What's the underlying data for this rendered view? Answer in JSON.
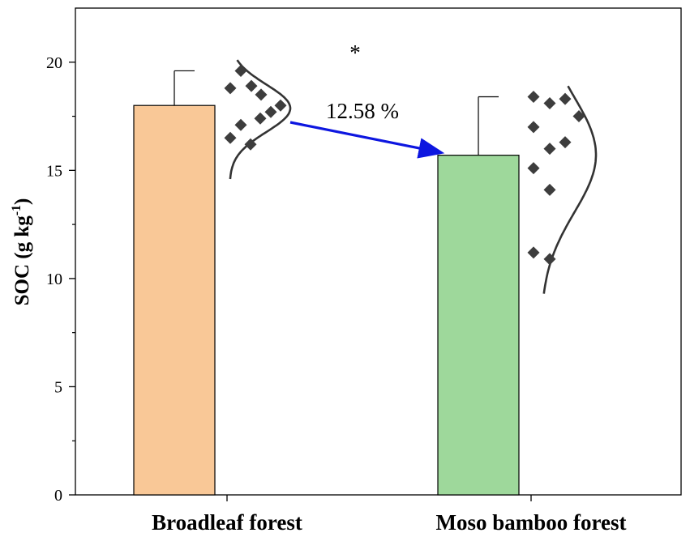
{
  "chart_data": {
    "type": "bar",
    "categories": [
      "Broadleaf forest",
      "Moso bamboo forest"
    ],
    "values": [
      18.0,
      15.7
    ],
    "error_upper": [
      19.6,
      18.4
    ],
    "bar_colors": [
      "#f9c897",
      "#9ed89b"
    ],
    "ylabel_main": "SOC (g kg",
    "ylabel_sup": "-1",
    "ylabel_end": ")",
    "ylim": [
      0,
      22.5
    ],
    "yticks": [
      "0",
      "5",
      "10",
      "15",
      "20"
    ],
    "points": [
      [
        19.6,
        18.9,
        18.8,
        18.5,
        18.0,
        17.7,
        17.4,
        17.1,
        16.5,
        16.2
      ],
      [
        18.4,
        18.3,
        18.1,
        17.5,
        17.0,
        16.3,
        16.0,
        15.1,
        14.1,
        11.2,
        10.9
      ]
    ],
    "significance": "*",
    "change_label": "12.58 %",
    "arrow_color": "#0d16e0",
    "marker_color": "#3d3d3d"
  }
}
